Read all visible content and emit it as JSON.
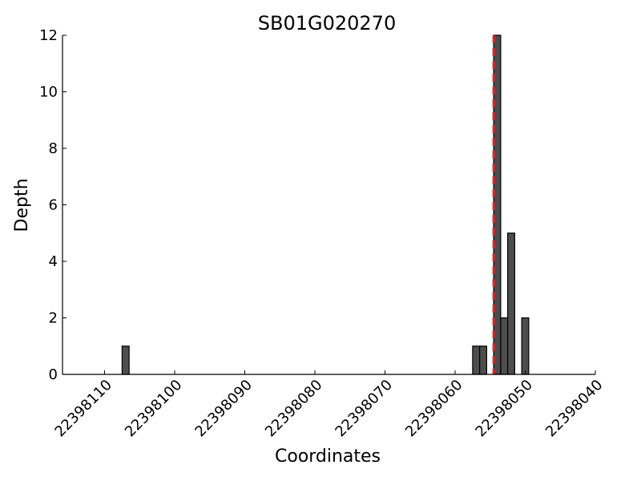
{
  "chart_data": {
    "type": "bar",
    "title": "SB01G020270",
    "xlabel": "Coordinates",
    "ylabel": "Depth",
    "x_reversed": true,
    "xlim": [
      22398116,
      22398040
    ],
    "ylim": [
      0,
      12
    ],
    "x_ticks": [
      22398110,
      22398100,
      22398090,
      22398080,
      22398070,
      22398060,
      22398050,
      22398040
    ],
    "y_ticks": [
      0,
      2,
      4,
      6,
      8,
      10,
      12
    ],
    "bar_color": "#4d4d4d",
    "marker_color": "#d62728",
    "marker_x": 22398054.5,
    "bars": [
      {
        "x": 22398107,
        "value": 1
      },
      {
        "x": 22398057,
        "value": 1
      },
      {
        "x": 22398056,
        "value": 1
      },
      {
        "x": 22398054,
        "value": 12
      },
      {
        "x": 22398053,
        "value": 2
      },
      {
        "x": 22398052,
        "value": 5
      },
      {
        "x": 22398050,
        "value": 2
      }
    ],
    "grid": false
  }
}
